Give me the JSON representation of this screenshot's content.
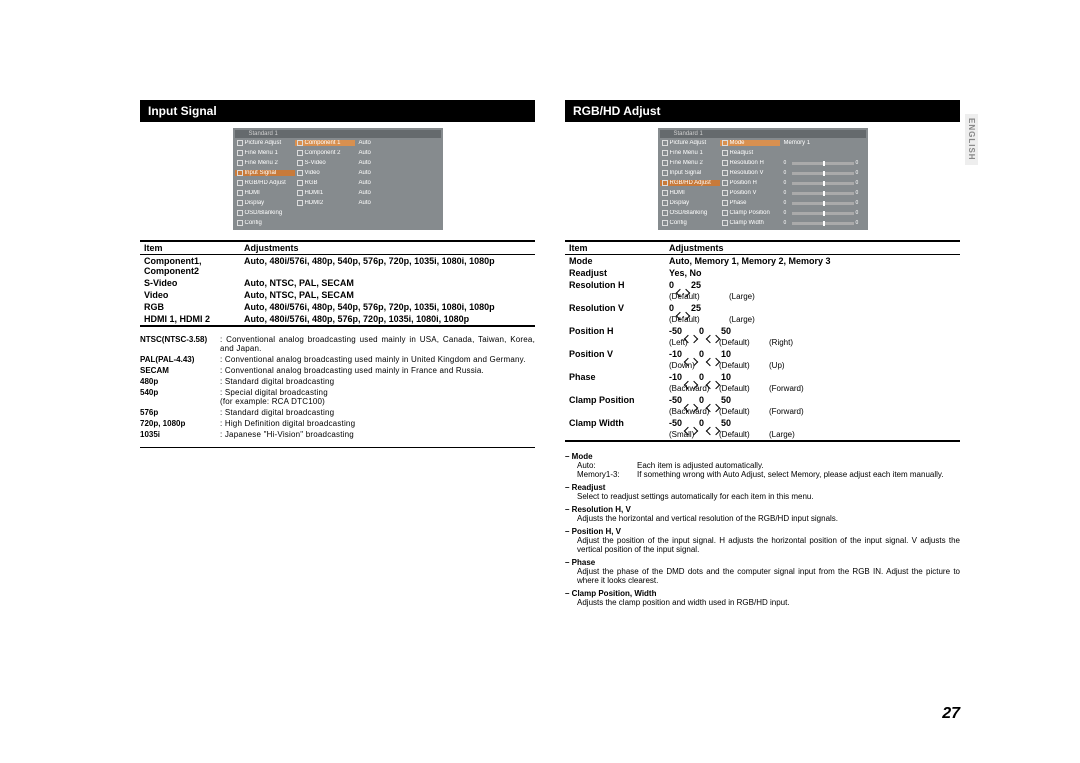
{
  "page_number": "27",
  "language_tab": "ENGLISH",
  "left": {
    "title": "Input Signal",
    "osd": {
      "header": "Standard 1",
      "menu": [
        "Picture Adjust",
        "Fine Menu 1",
        "Fine Menu 2",
        "Input Signal",
        "RGB/HD Adjust",
        "HDMI",
        "Display",
        "OSD/Blanking",
        "Config"
      ],
      "selected": 3,
      "sub": [
        [
          "Component 1",
          "Auto"
        ],
        [
          "Component 2",
          "Auto"
        ],
        [
          "S-Video",
          "Auto"
        ],
        [
          "Video",
          "Auto"
        ],
        [
          "RGB",
          "Auto"
        ],
        [
          "HDMI1",
          "Auto"
        ],
        [
          "HDMI2",
          "Auto"
        ]
      ]
    },
    "table": {
      "headers": [
        "Item",
        "Adjustments"
      ],
      "rows": [
        [
          "Component1, Component2",
          "Auto, 480i/576i, 480p, 540p, 576p, 720p, 1035i, 1080i, 1080p"
        ],
        [
          "S-Video",
          "Auto, NTSC, PAL, SECAM"
        ],
        [
          "Video",
          "Auto, NTSC, PAL, SECAM"
        ],
        [
          "RGB",
          "Auto, 480i/576i, 480p, 540p, 576p, 720p, 1035i, 1080i, 1080p"
        ],
        [
          "HDMI 1, HDMI 2",
          "Auto, 480i/576i, 480p, 576p, 720p, 1035i, 1080i, 1080p"
        ]
      ]
    },
    "defs": [
      {
        "k": "NTSC(NTSC-3.58)",
        "v": ": Conventional analog broadcasting used mainly in USA, Canada, Taiwan, Korea, and Japan."
      },
      {
        "k": "PAL(PAL-4.43)",
        "v": ": Conventional analog broadcasting used mainly in United Kingdom and Germany."
      },
      {
        "k": "SECAM",
        "v": ": Conventional analog broadcasting used mainly in France and Russia."
      },
      {
        "k": "480p",
        "v": ": Standard digital broadcasting"
      },
      {
        "k": "540p",
        "v": ": Special digital broadcasting\n  (for example: RCA DTC100)"
      },
      {
        "k": "576p",
        "v": ": Standard digital broadcasting"
      },
      {
        "k": "720p, 1080p",
        "v": ": High Definition digital broadcasting"
      },
      {
        "k": "1035i",
        "v": ": Japanese \"Hi-Vision\" broadcasting"
      }
    ]
  },
  "right": {
    "title": "RGB/HD Adjust",
    "osd": {
      "header": "Standard 1",
      "menu": [
        "Picture Adjust",
        "Fine Menu 1",
        "Fine Menu 2",
        "Input Signal",
        "RGB/HD Adjust",
        "HDMI",
        "Display",
        "OSD/Blanking",
        "Config"
      ],
      "selected": 4,
      "sub": [
        {
          "l": "Mode",
          "v": "Memory 1"
        },
        {
          "l": "Readjust",
          "v": ""
        },
        {
          "l": "Resolution H",
          "slider": true,
          "n": "0"
        },
        {
          "l": "Resolution V",
          "slider": true,
          "n": "0"
        },
        {
          "l": "Position H",
          "slider": true,
          "n": "0"
        },
        {
          "l": "Position V",
          "slider": true,
          "n": "0"
        },
        {
          "l": "Phase",
          "slider": true,
          "n": "0"
        },
        {
          "l": "Clamp Position",
          "slider": true,
          "n": "0"
        },
        {
          "l": "Clamp Width",
          "slider": true,
          "n": "0"
        }
      ]
    },
    "table": {
      "headers": [
        "Item",
        "Adjustments"
      ],
      "rows": [
        {
          "item": "Mode",
          "adj": "Auto, Memory 1, Memory 2, Memory 3"
        },
        {
          "item": "Readjust",
          "adj": "Yes, No"
        },
        {
          "item": "Resolution H",
          "range": {
            "lo": "",
            "mid": "0",
            "hi": "25"
          },
          "labels": [
            "(Default)",
            "(Large)"
          ]
        },
        {
          "item": "Resolution V",
          "range": {
            "lo": "",
            "mid": "0",
            "hi": "25"
          },
          "labels": [
            "(Default)",
            "(Large)"
          ]
        },
        {
          "item": "Position H",
          "range": {
            "lo": "-50",
            "mid": "0",
            "hi": "50"
          },
          "labels": [
            "(Left)",
            "(Default)",
            "(Right)"
          ]
        },
        {
          "item": "Position V",
          "range": {
            "lo": "-10",
            "mid": "0",
            "hi": "10"
          },
          "labels": [
            "(Down)",
            "(Default)",
            "(Up)"
          ]
        },
        {
          "item": "Phase",
          "range": {
            "lo": "-10",
            "mid": "0",
            "hi": "10"
          },
          "labels": [
            "(Backward)",
            "(Default)",
            "(Forward)"
          ]
        },
        {
          "item": "Clamp Position",
          "range": {
            "lo": "-50",
            "mid": "0",
            "hi": "50"
          },
          "labels": [
            "(Backward)",
            "(Default)",
            "(Forward)"
          ]
        },
        {
          "item": "Clamp Width",
          "range": {
            "lo": "-50",
            "mid": "0",
            "hi": "50"
          },
          "labels": [
            "(Small)",
            "(Default)",
            "(Large)"
          ]
        }
      ]
    },
    "notes": [
      {
        "h": "– Mode",
        "subs": [
          {
            "k": "Auto:",
            "v": "Each item is adjusted automatically."
          },
          {
            "k": "Memory1-3:",
            "v": "If something wrong with Auto Adjust, select Memory, please adjust each item manually."
          }
        ]
      },
      {
        "h": "– Readjust",
        "body": "Select to readjust settings automatically for each item in this menu."
      },
      {
        "h": "– Resolution H, V",
        "body": "Adjusts the horizontal and vertical resolution of the RGB/HD input signals."
      },
      {
        "h": "– Position H, V",
        "body": "Adjust the position of the input signal. H adjusts the horizontal position of the input signal. V adjusts the vertical position of the input signal."
      },
      {
        "h": "– Phase",
        "body": "Adjust the phase of the DMD dots and the computer signal input from the RGB IN. Adjust the picture to where it looks clearest."
      },
      {
        "h": "– Clamp Position, Width",
        "body": "Adjusts the clamp position and width used in RGB/HD input."
      }
    ]
  }
}
